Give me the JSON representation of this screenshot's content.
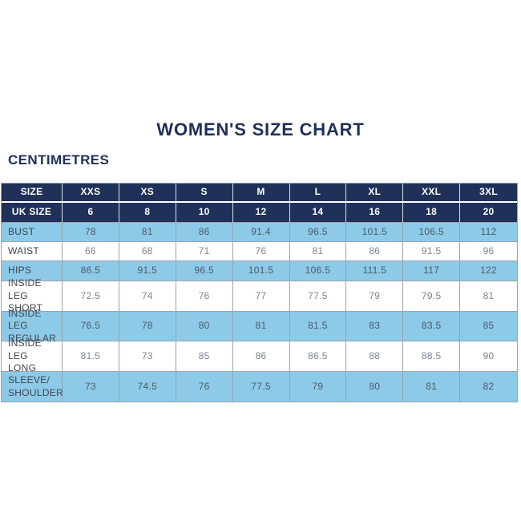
{
  "page": {
    "title": "WOMEN'S SIZE CHART",
    "units_label": "CENTIMETRES"
  },
  "colors": {
    "navy": "#1f3158",
    "light_blue": "#8dcae8",
    "border_gray": "#9aa3ad",
    "label_text": "#3d4651",
    "value_text": "#7b8591"
  },
  "chart_data": {
    "type": "table",
    "title": "WOMEN'S SIZE CHART",
    "units": "CENTIMETRES",
    "columns": [
      "SIZE",
      "XXS",
      "XS",
      "S",
      "M",
      "L",
      "XL",
      "XXL",
      "3XL"
    ],
    "rows": [
      {
        "label": "UK SIZE",
        "style": "header",
        "values": [
          "6",
          "8",
          "10",
          "12",
          "14",
          "16",
          "18",
          "20"
        ]
      },
      {
        "label": "BUST",
        "values": [
          "78",
          "81",
          "86",
          "91.4",
          "96.5",
          "101.5",
          "106.5",
          "112"
        ]
      },
      {
        "label": "WAIST",
        "values": [
          "66",
          "68",
          "71",
          "76",
          "81",
          "86",
          "91.5",
          "96"
        ]
      },
      {
        "label": "HIPS",
        "values": [
          "86.5",
          "91.5",
          "96.5",
          "101.5",
          "106.5",
          "111.5",
          "117",
          "122"
        ]
      },
      {
        "label": "INSIDE LEG\nSHORT",
        "values": [
          "72.5",
          "74",
          "76",
          "77",
          "77.5",
          "79",
          "79.5",
          "81"
        ]
      },
      {
        "label": "INSIDE LEG\nREGULAR",
        "values": [
          "76.5",
          "78",
          "80",
          "81",
          "81.5",
          "83",
          "83.5",
          "85"
        ]
      },
      {
        "label": "INSIDE LEG\nLONG",
        "values": [
          "81.5",
          "73",
          "85",
          "86",
          "86.5",
          "88",
          "88.5",
          "90"
        ]
      },
      {
        "label": "SLEEVE/\nSHOULDER",
        "values": [
          "73",
          "74.5",
          "76",
          "77.5",
          "79",
          "80",
          "81",
          "82"
        ]
      }
    ]
  }
}
